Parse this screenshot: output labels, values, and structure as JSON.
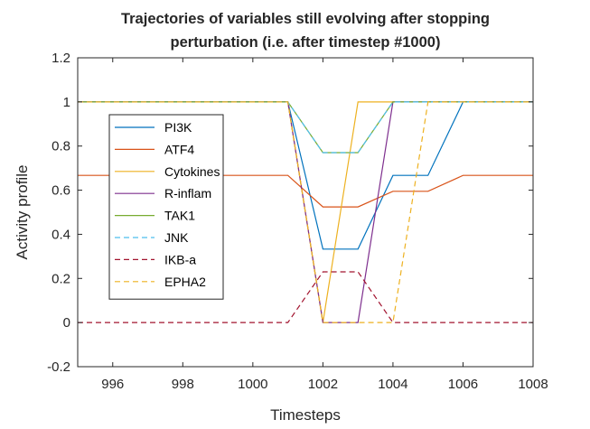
{
  "chart_data": {
    "type": "line",
    "title_lines": [
      "Trajectories of variables still evolving after stopping",
      "perturbation (i.e. after timestep #1000)"
    ],
    "xlabel": "Timesteps",
    "ylabel": "Activity profile",
    "xlim": [
      995,
      1008
    ],
    "ylim": [
      -0.2,
      1.2
    ],
    "xticks": [
      "996",
      "998",
      "1000",
      "1002",
      "1004",
      "1006",
      "1008"
    ],
    "yticks": [
      "-0.2",
      "0",
      "0.2",
      "0.4",
      "0.6",
      "0.8",
      "1",
      "1.2"
    ],
    "grid": false,
    "legend_position": "left",
    "series": [
      {
        "name": "PI3K",
        "color": "#0072BD",
        "dash": "solid",
        "x": [
          995,
          1001,
          1002,
          1003,
          1004,
          1005,
          1006,
          1008
        ],
        "y": [
          1,
          1,
          0.333,
          0.333,
          0.667,
          0.667,
          1,
          1
        ]
      },
      {
        "name": "ATF4",
        "color": "#D95319",
        "dash": "solid",
        "x": [
          995,
          1001,
          1002,
          1003,
          1004,
          1005,
          1006,
          1008
        ],
        "y": [
          0.667,
          0.667,
          0.524,
          0.524,
          0.595,
          0.595,
          0.667,
          0.667
        ]
      },
      {
        "name": "Cytokines",
        "color": "#EDB120",
        "dash": "solid",
        "x": [
          995,
          1001,
          1002,
          1003,
          1008
        ],
        "y": [
          1,
          1,
          0,
          1,
          1
        ]
      },
      {
        "name": "R-inflam",
        "color": "#7E2F8E",
        "dash": "solid",
        "x": [
          995,
          1001,
          1002,
          1003,
          1004,
          1008
        ],
        "y": [
          1,
          1,
          0,
          0,
          1,
          1
        ]
      },
      {
        "name": "TAK1",
        "color": "#77AC30",
        "dash": "solid",
        "x": [
          995,
          1001,
          1002,
          1003,
          1004,
          1008
        ],
        "y": [
          1,
          1,
          0.77,
          0.77,
          1,
          1
        ]
      },
      {
        "name": "JNK",
        "color": "#4DBEEE",
        "dash": "dashed",
        "x": [
          995,
          1001,
          1002,
          1003,
          1004,
          1008
        ],
        "y": [
          1,
          1,
          0.77,
          0.77,
          1,
          1
        ]
      },
      {
        "name": "IKB-a",
        "color": "#A2142F",
        "dash": "dashed",
        "x": [
          995,
          1001,
          1002,
          1003,
          1004,
          1008
        ],
        "y": [
          0,
          0,
          0.23,
          0.23,
          0,
          0
        ]
      },
      {
        "name": "EPHA2",
        "color": "#EDB120",
        "dash": "dashed",
        "x": [
          995,
          1001,
          1002,
          1004,
          1005,
          1008
        ],
        "y": [
          1,
          1,
          0,
          0,
          1,
          1
        ]
      }
    ]
  }
}
